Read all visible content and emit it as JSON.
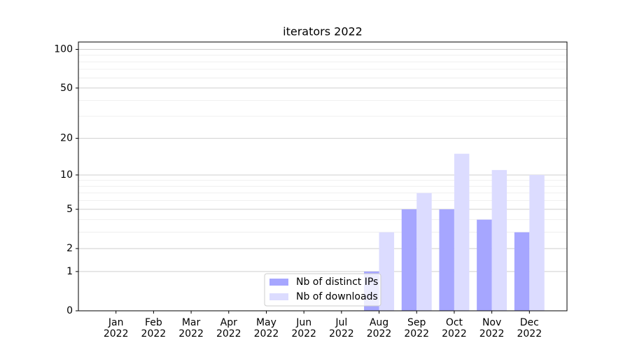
{
  "chart_data": {
    "type": "bar",
    "title": "iterators 2022",
    "categories": [
      "Jan\n2022",
      "Feb\n2022",
      "Mar\n2022",
      "Apr\n2022",
      "May\n2022",
      "Jun\n2022",
      "Jul\n2022",
      "Aug\n2022",
      "Sep\n2022",
      "Oct\n2022",
      "Nov\n2022",
      "Dec\n2022"
    ],
    "series": [
      {
        "name": "Nb of distinct IPs",
        "color": "#a6a6ff",
        "values": [
          0,
          0,
          0,
          0,
          0,
          0,
          0,
          1,
          5,
          5,
          4,
          3
        ]
      },
      {
        "name": "Nb of downloads",
        "color": "#dcdcff",
        "values": [
          0,
          0,
          0,
          0,
          0,
          0,
          0,
          3,
          7,
          15,
          11,
          10
        ]
      }
    ],
    "y_scale": "log1p",
    "ylim": [
      0,
      114
    ],
    "yticks": [
      0,
      1,
      2,
      5,
      10,
      20,
      50,
      100
    ],
    "minor_yticks": [
      3,
      4,
      6,
      7,
      8,
      9,
      30,
      40,
      60,
      70,
      80,
      90
    ],
    "grid": true,
    "legend": "lower center"
  }
}
